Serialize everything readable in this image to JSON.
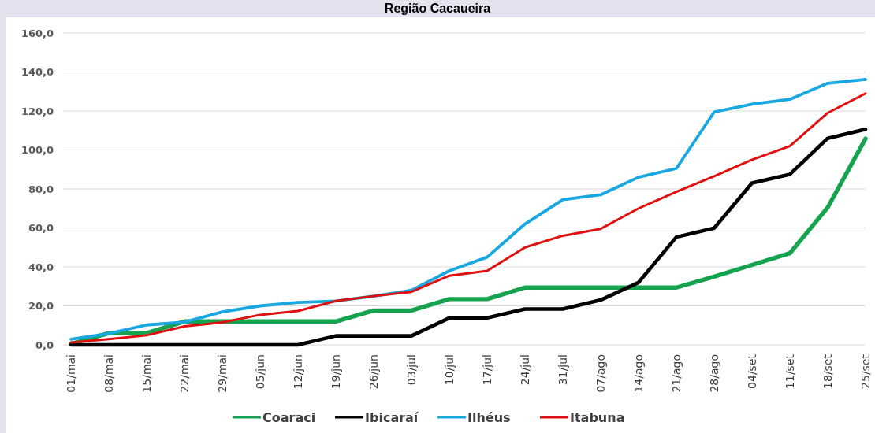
{
  "chart_data": {
    "type": "line",
    "title": "Região Cacaueira",
    "categories": [
      "01/mai",
      "08/mai",
      "15/mai",
      "22/mai",
      "29/mai",
      "05/jun",
      "12/jun",
      "19/jun",
      "26/jun",
      "03/jul",
      "10/jul",
      "17/jul",
      "24/jul",
      "31/jul",
      "07/ago",
      "14/ago",
      "21/ago",
      "28/ago",
      "04/set",
      "11/set",
      "18/set",
      "25/set"
    ],
    "series": [
      {
        "name": "Coaraci",
        "color": "#16a34f",
        "values": [
          0.5,
          6,
          6,
          12,
          12,
          12,
          12,
          12,
          17.6,
          17.6,
          23.5,
          23.5,
          29.4,
          29.4,
          29.4,
          29.4,
          29.4,
          35,
          41,
          47,
          70.5,
          105.8
        ]
      },
      {
        "name": "Ibicaraí",
        "color": "#000000",
        "values": [
          0,
          0,
          0,
          0,
          0,
          0,
          0,
          4.6,
          4.6,
          4.6,
          13.8,
          13.8,
          18.4,
          18.4,
          23,
          32,
          55.3,
          59.9,
          83,
          87.5,
          106,
          110.6
        ]
      },
      {
        "name": "Ilhéus",
        "color": "#18a7e0",
        "values": [
          2.9,
          5.8,
          10.2,
          11.7,
          16.9,
          20,
          21.8,
          22.5,
          25,
          28,
          38,
          45,
          62,
          74.5,
          77,
          86,
          90.5,
          119.5,
          123.5,
          126,
          134.2,
          136.2
        ]
      },
      {
        "name": "Itabuna",
        "color": "#e01010",
        "values": [
          1.2,
          2.9,
          4.9,
          9.5,
          11.5,
          15.4,
          17.4,
          22.5,
          25,
          27.2,
          35.5,
          38,
          50,
          56,
          59.5,
          70,
          78.5,
          86.5,
          95,
          102,
          119,
          129
        ]
      }
    ],
    "ylim": [
      0,
      160
    ],
    "yticks": [
      {
        "value": 0,
        "label": "0,0"
      },
      {
        "value": 20,
        "label": "20,0"
      },
      {
        "value": 40,
        "label": "40,0"
      },
      {
        "value": 60,
        "label": "60,0"
      },
      {
        "value": 80,
        "label": "80,0"
      },
      {
        "value": 100,
        "label": "100,0"
      },
      {
        "value": 120,
        "label": "120,0"
      },
      {
        "value": 140,
        "label": "140,0"
      },
      {
        "value": 160,
        "label": "160,0"
      }
    ],
    "grid": "y",
    "legend": "bottom",
    "marker": "none",
    "line_style": "solid"
  }
}
